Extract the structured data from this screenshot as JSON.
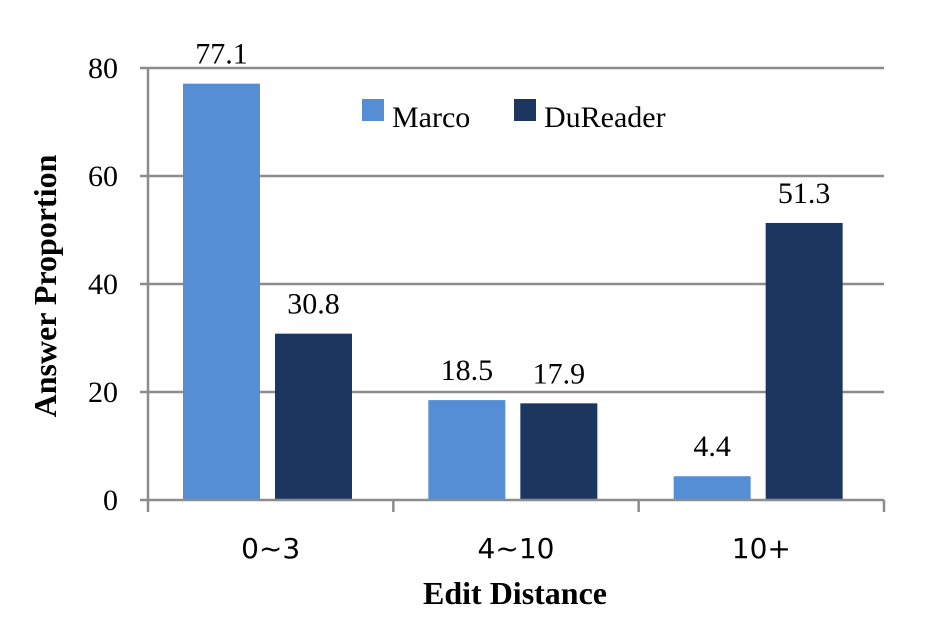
{
  "chart_data": {
    "type": "bar",
    "categories": [
      "0~3",
      "4~10",
      "10+"
    ],
    "series": [
      {
        "name": "Marco",
        "values": [
          77.1,
          18.5,
          4.4
        ],
        "color": "#558ED5"
      },
      {
        "name": "DuReader",
        "values": [
          30.8,
          17.9,
          51.3
        ],
        "color": "#1C375F"
      }
    ],
    "data_labels": [
      [
        "77.1",
        "18.5",
        "4.4"
      ],
      [
        "30.8",
        "17.9",
        "51.3"
      ]
    ],
    "y_ticks": [
      0,
      20,
      40,
      60,
      80
    ],
    "y_tick_labels": [
      "0",
      "20",
      "40",
      "60",
      "80"
    ],
    "xlabel": "Edit Distance",
    "ylabel": "Answer Proportion",
    "ylim": [
      0,
      80
    ],
    "grid": true,
    "grid_color": "#8C8C8C",
    "legend_position": "top-center"
  }
}
